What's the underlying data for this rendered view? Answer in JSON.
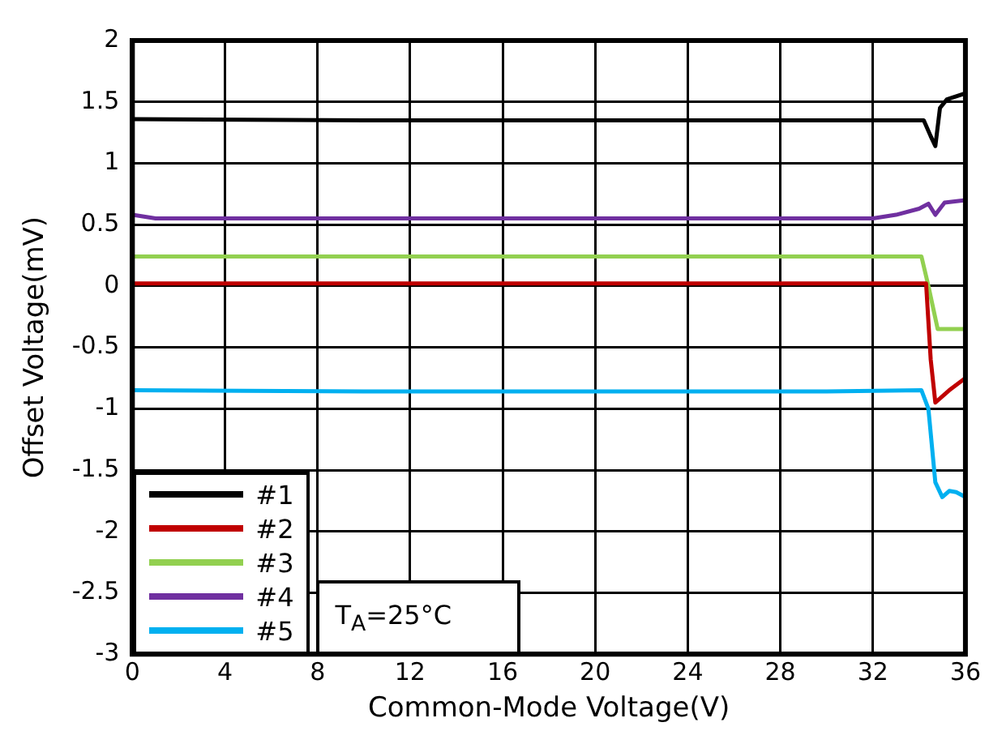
{
  "chart_data": {
    "type": "line",
    "xlabel": "Common-Mode Voltage(V)",
    "ylabel": "Offset Voltage(mV)",
    "xlim": [
      0,
      36
    ],
    "xticks": [
      0,
      4,
      8,
      12,
      16,
      20,
      24,
      28,
      32,
      36
    ],
    "ylim": [
      -3,
      2
    ],
    "yticks": [
      -3,
      -2.5,
      -2,
      -1.5,
      -1,
      -0.5,
      0,
      0.5,
      1,
      1.5,
      2
    ],
    "grid": true,
    "legend": "bottom left",
    "marker": "none",
    "line_style": "solid",
    "annotations": [
      "T$_{A}$=25°C"
    ],
    "series": [
      {
        "name": "#1",
        "color": "#000000",
        "x": [
          0,
          10,
          20,
          30,
          34.2,
          34.5,
          34.7,
          34.9,
          35.2,
          36
        ],
        "values": [
          1.36,
          1.35,
          1.35,
          1.35,
          1.35,
          1.22,
          1.14,
          1.45,
          1.52,
          1.57
        ]
      },
      {
        "name": "#2",
        "color": "#c00000",
        "x": [
          0,
          10,
          20,
          30,
          34.3,
          34.5,
          34.7,
          35,
          35.3,
          36
        ],
        "values": [
          0.02,
          0.02,
          0.02,
          0.02,
          0.02,
          -0.6,
          -0.95,
          -0.9,
          -0.85,
          -0.75
        ]
      },
      {
        "name": "#3",
        "color": "#92d050",
        "x": [
          0,
          10,
          20,
          30,
          34.1,
          34.4,
          34.8,
          35.3,
          36
        ],
        "values": [
          0.24,
          0.24,
          0.24,
          0.24,
          0.24,
          0.0,
          -0.35,
          -0.35,
          -0.35
        ]
      },
      {
        "name": "#4",
        "color": "#7030a0",
        "x": [
          0,
          1,
          10,
          20,
          32,
          33,
          34,
          34.4,
          34.7,
          35.1,
          36
        ],
        "values": [
          0.58,
          0.55,
          0.55,
          0.55,
          0.55,
          0.58,
          0.63,
          0.67,
          0.58,
          0.68,
          0.7
        ]
      },
      {
        "name": "#5",
        "color": "#00b0f0",
        "x": [
          0,
          10,
          20,
          30,
          34.1,
          34.4,
          34.7,
          35,
          35.3,
          35.6,
          36
        ],
        "values": [
          -0.85,
          -0.86,
          -0.86,
          -0.86,
          -0.85,
          -1.0,
          -1.6,
          -1.72,
          -1.67,
          -1.68,
          -1.72
        ]
      }
    ]
  }
}
